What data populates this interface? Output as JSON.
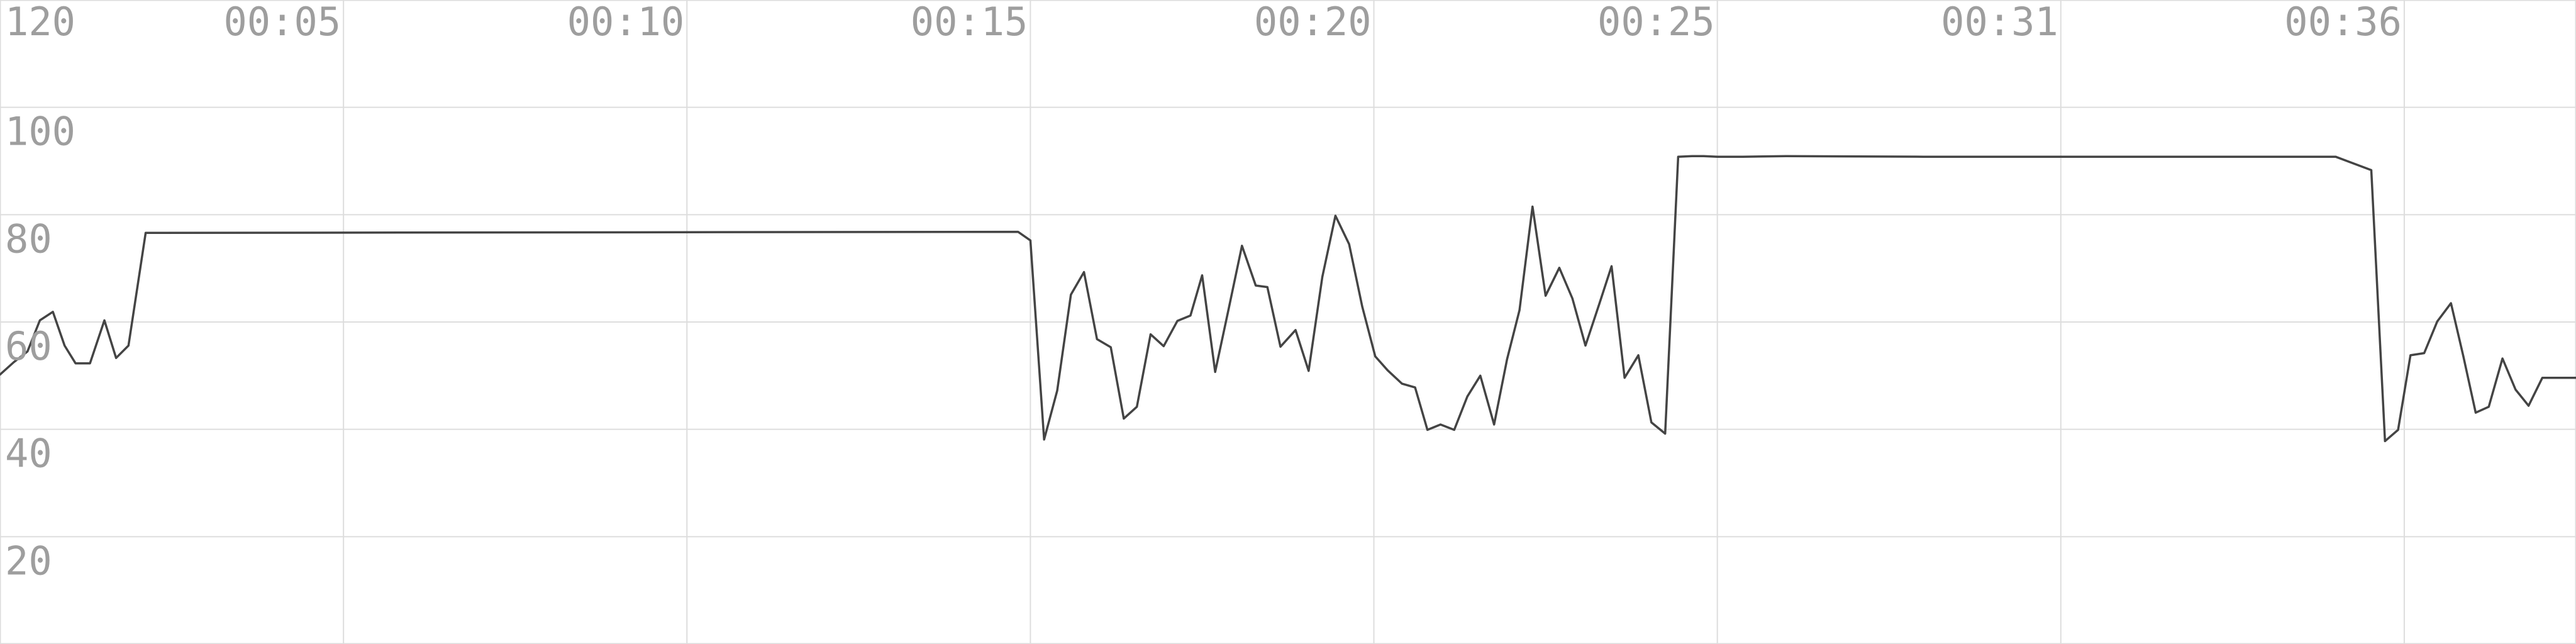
{
  "chart_data": {
    "type": "line",
    "title": "",
    "xlabel": "",
    "ylabel": "",
    "ylim": [
      0,
      120
    ],
    "xlim": [
      0,
      37.5
    ],
    "x_tick_labels": [
      {
        "t": 5,
        "label": "00:05"
      },
      {
        "t": 10,
        "label": "00:10"
      },
      {
        "t": 15,
        "label": "00:15"
      },
      {
        "t": 20,
        "label": "00:20"
      },
      {
        "t": 25,
        "label": "00:25"
      },
      {
        "t": 30,
        "label": "00:31"
      },
      {
        "t": 35,
        "label": "00:36"
      }
    ],
    "y_tick_labels": [
      {
        "v": 120,
        "label": "120"
      },
      {
        "v": 100,
        "label": "100"
      },
      {
        "v": 80,
        "label": "80"
      },
      {
        "v": 60,
        "label": "60"
      },
      {
        "v": 40,
        "label": "40"
      },
      {
        "v": 20,
        "label": "20"
      }
    ],
    "grid": true,
    "line_color": "#444444",
    "grid_color": "#dddddd",
    "series": [
      {
        "x": [
          0,
          0.2,
          0.4,
          0.58,
          0.77,
          0.94,
          1.1,
          1.31,
          1.52,
          1.69,
          1.87,
          2.12,
          14.82,
          15.0,
          15.2,
          15.39,
          15.59,
          15.78,
          15.97,
          16.17,
          16.36,
          16.55,
          16.75,
          16.94,
          17.14,
          17.33,
          17.5,
          17.69,
          17.89,
          18.08,
          18.28,
          18.45,
          18.64,
          18.86,
          19.05,
          19.25,
          19.44,
          19.64,
          19.83,
          20.02,
          20.2,
          20.41,
          20.6,
          20.78,
          20.97,
          21.17,
          21.36,
          21.55,
          21.75,
          21.94,
          22.12,
          22.31,
          22.5,
          22.7,
          22.89,
          23.08,
          23.28,
          23.46,
          23.65,
          23.85,
          24.04,
          24.24,
          24.43,
          24.63,
          24.8,
          25.0,
          25.2,
          25.37,
          26.0,
          28.0,
          30.0,
          32.0,
          34.0,
          34.52,
          34.72,
          34.91,
          35.09,
          35.29,
          35.48,
          35.68,
          35.86,
          36.04,
          36.23,
          36.43,
          36.62,
          36.81,
          37.01,
          37.2,
          37.38,
          37.5
        ],
        "y": [
          50.2,
          52.5,
          54.5,
          60.3,
          61.9,
          55.6,
          52.3,
          52.3,
          60.3,
          53.3,
          55.6,
          76.6,
          76.8,
          75.2,
          38.1,
          47.2,
          65.1,
          69.3,
          56.8,
          55.3,
          42.0,
          44.2,
          57.7,
          55.5,
          60.2,
          61.2,
          68.7,
          50.7,
          62.7,
          74.2,
          66.8,
          66.5,
          55.4,
          58.5,
          50.9,
          68.4,
          79.8,
          74.5,
          62.9,
          53.6,
          51.0,
          48.5,
          47.8,
          39.9,
          40.9,
          39.9,
          46.1,
          50.0,
          40.9,
          53.1,
          62.2,
          81.5,
          64.9,
          70.1,
          64.4,
          55.6,
          63.3,
          70.4,
          49.6,
          53.8,
          41.3,
          39.2,
          90.8,
          90.9,
          90.9,
          90.8,
          90.8,
          90.8,
          90.9,
          90.8,
          90.8,
          90.8,
          90.8,
          88.3,
          37.8,
          39.9,
          53.8,
          54.2,
          60.1,
          63.5,
          53.6,
          43.1,
          44.2,
          53.2,
          47.4,
          44.4,
          49.6,
          49.6,
          49.6,
          49.6
        ]
      }
    ]
  }
}
